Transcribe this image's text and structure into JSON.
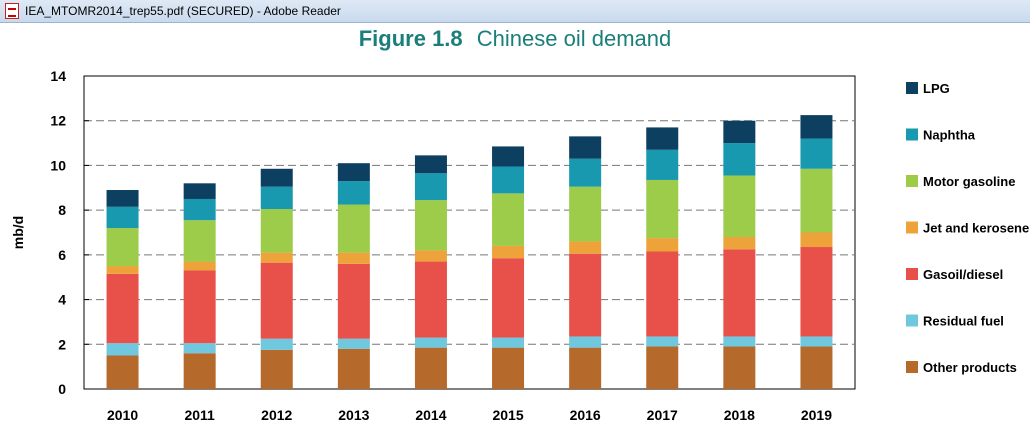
{
  "window": {
    "title": "IEA_MTOMR2014_trep55.pdf (SECURED) - Adobe Reader",
    "app_icon": "pdf-document-icon"
  },
  "figure": {
    "number": "Figure 1.8",
    "title": "Chinese oil demand"
  },
  "chart_data": {
    "type": "bar",
    "stacked": true,
    "title": "Figure 1.8  Chinese oil demand",
    "xlabel": "",
    "ylabel": "mb/d",
    "ylim": [
      0,
      14
    ],
    "yticks": [
      0,
      2,
      4,
      6,
      8,
      10,
      12,
      14
    ],
    "grid": "horizontal dashed",
    "legend_position": "right",
    "categories": [
      "2010",
      "2011",
      "2012",
      "2013",
      "2014",
      "2015",
      "2016",
      "2017",
      "2018",
      "2019"
    ],
    "series": [
      {
        "name": "Other products",
        "color": "#b5692b",
        "values": [
          1.5,
          1.6,
          1.75,
          1.8,
          1.85,
          1.85,
          1.85,
          1.9,
          1.9,
          1.9
        ]
      },
      {
        "name": "Residual fuel",
        "color": "#6fc8de",
        "values": [
          0.55,
          0.45,
          0.5,
          0.45,
          0.45,
          0.45,
          0.5,
          0.45,
          0.45,
          0.45
        ]
      },
      {
        "name": "Gasoil/diesel",
        "color": "#e8504a",
        "values": [
          3.1,
          3.25,
          3.4,
          3.35,
          3.4,
          3.55,
          3.7,
          3.8,
          3.9,
          4.0
        ]
      },
      {
        "name": "Jet and kerosene",
        "color": "#eda33a",
        "values": [
          0.35,
          0.4,
          0.45,
          0.5,
          0.5,
          0.55,
          0.55,
          0.6,
          0.55,
          0.65
        ]
      },
      {
        "name": "Motor gasoline",
        "color": "#9ccc4a",
        "values": [
          1.7,
          1.85,
          1.95,
          2.15,
          2.25,
          2.35,
          2.45,
          2.6,
          2.75,
          2.85
        ]
      },
      {
        "name": "Naphtha",
        "color": "#1899b0",
        "values": [
          0.95,
          0.95,
          1.0,
          1.05,
          1.2,
          1.2,
          1.25,
          1.35,
          1.45,
          1.35
        ]
      },
      {
        "name": "LPG",
        "color": "#0d3f60",
        "values": [
          0.75,
          0.7,
          0.8,
          0.8,
          0.8,
          0.9,
          1.0,
          1.0,
          1.0,
          1.05
        ]
      }
    ]
  }
}
